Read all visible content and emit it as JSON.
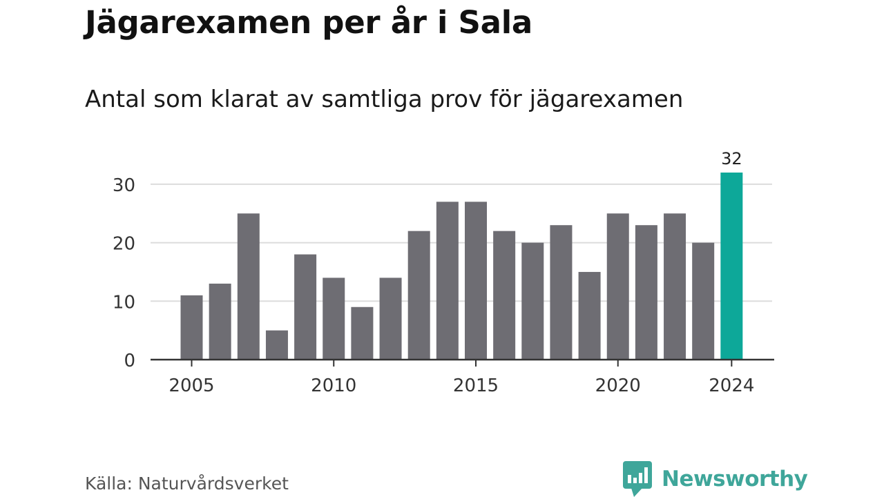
{
  "title": "Jägarexamen per år i Sala",
  "subtitle": "Antal som klarat av samtliga prov för jägarexamen",
  "source": "Källa: Naturvårdsverket",
  "brand": {
    "name": "Newsworthy",
    "logo_icon": "newsworthy-logo-icon",
    "color": "#3fa69a"
  },
  "colors": {
    "bar": "#6e6d73",
    "highlight": "#0da899",
    "grid": "#dcdcdc",
    "axis": "#333333"
  },
  "chart_data": {
    "type": "bar",
    "categories": [
      "2005",
      "2006",
      "2007",
      "2008",
      "2009",
      "2010",
      "2011",
      "2012",
      "2013",
      "2014",
      "2015",
      "2016",
      "2017",
      "2018",
      "2019",
      "2020",
      "2021",
      "2022",
      "2023",
      "2024"
    ],
    "values": [
      11,
      13,
      25,
      5,
      18,
      14,
      9,
      14,
      22,
      27,
      27,
      22,
      20,
      23,
      15,
      25,
      23,
      25,
      20,
      32
    ],
    "highlight": {
      "category": "2024",
      "label": "32"
    },
    "xticks": [
      "2005",
      "2010",
      "2015",
      "2020",
      "2024"
    ],
    "yticks": [
      0,
      10,
      20,
      30
    ],
    "ylim": [
      0,
      32
    ],
    "grid": true,
    "xlabel": "",
    "ylabel": ""
  }
}
